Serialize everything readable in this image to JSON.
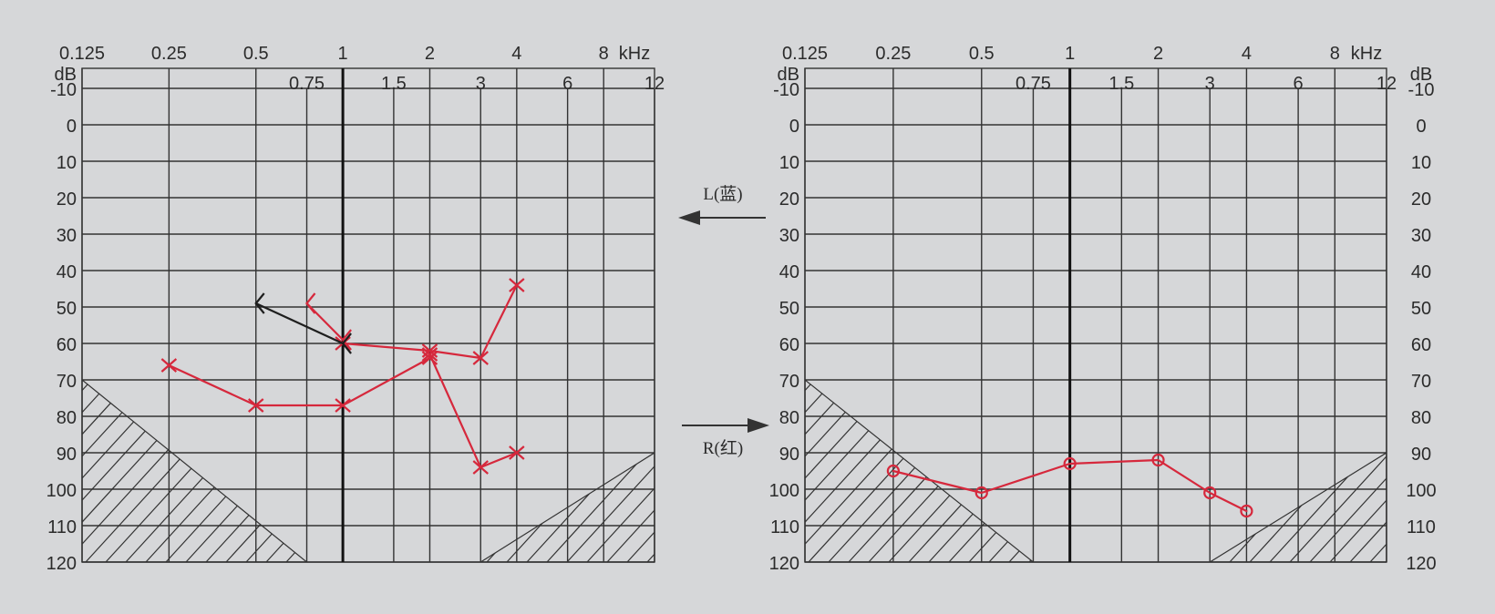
{
  "arrows": {
    "left": {
      "label": "L(蓝)"
    },
    "right": {
      "label": "R(红)"
    }
  },
  "chart_data": [
    {
      "type": "line",
      "chart_title": "",
      "x_scale": "log",
      "y_inverted": true,
      "xlim": [
        0.125,
        12
      ],
      "ylim": [
        -10,
        120
      ],
      "freq_units": "kHz",
      "level_units": "dB",
      "freq_ticks_top": [
        "0.125",
        "0.25",
        "0.5",
        "1",
        "2",
        "4",
        "8"
      ],
      "freq_ticks_inner": [
        "0.75",
        "1.5",
        "3",
        "6",
        "12"
      ],
      "db_ticks": [
        "-10",
        "0",
        "10",
        "20",
        "30",
        "40",
        "50",
        "60",
        "70",
        "80",
        "90",
        "100",
        "110",
        "120"
      ],
      "show_right_axis": false,
      "series": [
        {
          "marker": "x",
          "color": "#d6283c",
          "x": [
            0.25,
            0.5,
            1,
            2
          ],
          "y": [
            66,
            77,
            77,
            64
          ]
        },
        {
          "marker": "x",
          "color": "#d6283c",
          "x": [
            1,
            2,
            3,
            4
          ],
          "y": [
            60,
            62,
            64,
            44
          ]
        },
        {
          "marker": "x",
          "color": "#d6283c",
          "x": [
            2,
            3,
            4
          ],
          "y": [
            63,
            94,
            90
          ]
        },
        {
          "marker": "bracket-left",
          "color": "#d6283c",
          "x": [
            0.75,
            1
          ],
          "y": [
            49,
            59
          ]
        },
        {
          "marker": "bracket-left",
          "color": "#1e1e1e",
          "x": [
            0.5,
            1
          ],
          "y": [
            49,
            60
          ]
        }
      ]
    },
    {
      "type": "line",
      "chart_title": "",
      "x_scale": "log",
      "y_inverted": true,
      "xlim": [
        0.125,
        12
      ],
      "ylim": [
        -10,
        120
      ],
      "freq_units": "kHz",
      "level_units": "dB",
      "freq_ticks_top": [
        "0.125",
        "0.25",
        "0.5",
        "1",
        "2",
        "4",
        "8"
      ],
      "freq_ticks_inner": [
        "0.75",
        "1.5",
        "3",
        "6",
        "12"
      ],
      "db_ticks": [
        "-10",
        "0",
        "10",
        "20",
        "30",
        "40",
        "50",
        "60",
        "70",
        "80",
        "90",
        "100",
        "110",
        "120"
      ],
      "show_right_axis": true,
      "series": [
        {
          "marker": "o",
          "color": "#d6283c",
          "x": [
            0.25,
            0.5,
            1,
            2,
            3,
            4
          ],
          "y": [
            95,
            101,
            93,
            92,
            101,
            106
          ]
        }
      ]
    }
  ]
}
